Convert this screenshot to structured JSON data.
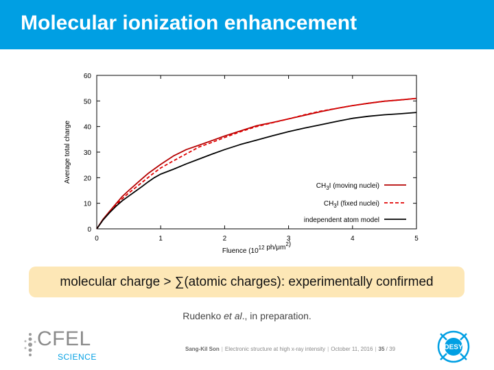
{
  "slide": {
    "title": "Molecular ionization enhancement",
    "banner": "molecular charge > ∑(atomic charges): experimentally confirmed",
    "citation_prefix": "Rudenko ",
    "citation_italic": "et al",
    "citation_suffix": "., in preparation."
  },
  "footer": {
    "author": "Sang-Kil Son",
    "talk": "Electronic structure at high x-ray intensity",
    "date": "October 11, 2016",
    "page": "35",
    "total": "/ 39",
    "logo_left_word": "CFEL",
    "logo_left_sub": "SCIENCE",
    "logo_right": "DESY"
  },
  "colors": {
    "title_bar": "#009fe3",
    "banner_bg": "#fde7b6",
    "moving": "#b50000",
    "fixed": "#e00000",
    "atom": "#000000"
  },
  "chart_data": {
    "type": "line",
    "title": "",
    "xlabel": "Fluence (10",
    "xlabel_exp": "12",
    "xlabel_unit": " ph/μm",
    "xlabel_exp2": "2",
    "xlabel_close": ")",
    "ylabel": "Average total charge",
    "xlim": [
      0,
      5
    ],
    "ylim": [
      0,
      60
    ],
    "xticks": [
      "0",
      "1",
      "2",
      "3",
      "4",
      "5"
    ],
    "yticks": [
      "0",
      "10",
      "20",
      "30",
      "40",
      "50",
      "60"
    ],
    "grid": false,
    "legend_position": "bottom-right",
    "series": [
      {
        "name": "CH3I (moving nuclei)",
        "name_pre": "CH",
        "name_sub": "3",
        "name_post": "I (moving nuclei)",
        "style": "solid",
        "x": [
          0,
          0.1,
          0.2,
          0.3,
          0.4,
          0.5,
          0.6,
          0.7,
          0.8,
          0.9,
          1.0,
          1.2,
          1.4,
          1.6,
          1.8,
          2.0,
          2.25,
          2.5,
          2.75,
          3.0,
          3.25,
          3.5,
          3.75,
          4.0,
          4.25,
          4.5,
          4.75,
          5.0
        ],
        "y": [
          0,
          3.8,
          6.8,
          9.8,
          12.7,
          15.0,
          17.2,
          19.4,
          21.6,
          23.4,
          25.2,
          28.5,
          31.0,
          32.7,
          34.5,
          36.3,
          38.3,
          40.3,
          41.6,
          43.0,
          44.4,
          45.8,
          47.1,
          48.2,
          49.1,
          49.9,
          50.4,
          51.0
        ]
      },
      {
        "name": "CH3I (fixed nuclei)",
        "name_pre": "CH",
        "name_sub": "3",
        "name_post": "I (fixed nuclei)",
        "style": "dashed",
        "x": [
          0,
          0.1,
          0.2,
          0.3,
          0.4,
          0.5,
          0.6,
          0.7,
          0.8,
          0.9,
          1.0,
          1.2,
          1.4,
          1.6,
          1.8,
          2.0,
          2.25,
          2.5,
          2.75,
          3.0,
          3.25,
          3.5,
          3.75,
          4.0,
          4.25,
          4.5,
          4.75,
          5.0
        ],
        "y": [
          0,
          3.5,
          6.5,
          9.3,
          11.8,
          14.0,
          16.0,
          18.0,
          20.0,
          22.0,
          23.8,
          26.6,
          29.3,
          32.0,
          33.8,
          35.7,
          38.0,
          40.0,
          41.5,
          43.0,
          44.6,
          46.0,
          47.1,
          48.2,
          49.1,
          49.9,
          50.4,
          51.0
        ]
      },
      {
        "name": "independent atom model",
        "name_pre": "independent atom model",
        "name_sub": "",
        "name_post": "",
        "style": "solid",
        "x": [
          0,
          0.1,
          0.2,
          0.3,
          0.4,
          0.5,
          0.6,
          0.7,
          0.8,
          0.9,
          1.0,
          1.2,
          1.4,
          1.6,
          1.8,
          2.0,
          2.25,
          2.5,
          2.75,
          3.0,
          3.25,
          3.5,
          3.75,
          4.0,
          4.25,
          4.5,
          4.75,
          5.0
        ],
        "y": [
          0,
          3.5,
          6.3,
          8.8,
          11.0,
          12.8,
          14.6,
          16.4,
          18.3,
          20.0,
          21.4,
          23.3,
          25.4,
          27.3,
          29.2,
          31.0,
          33.0,
          34.7,
          36.4,
          38.0,
          39.4,
          40.7,
          42.0,
          43.2,
          44.0,
          44.6,
          45.0,
          45.5
        ]
      }
    ]
  }
}
